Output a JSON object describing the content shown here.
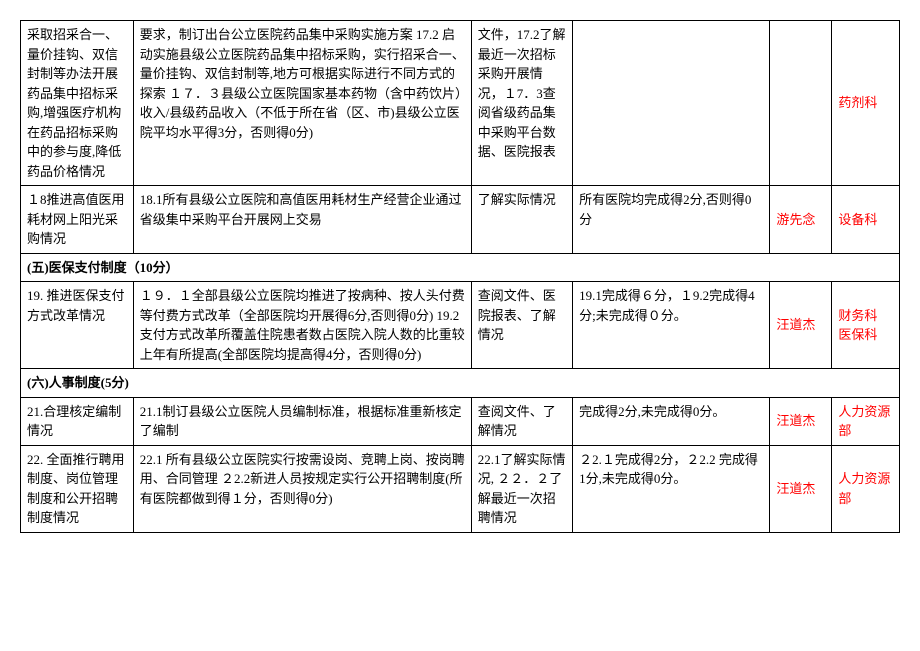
{
  "rows": {
    "r1": {
      "c1": "采取招采合一、量价挂钩、双信封制等办法开展药品集中招标采购,增强医疗机构在药品招标采购中的参与度,降低药品价格情况",
      "c2": "要求，制订出台公立医院药品集中采购实施方案 17.2 启动实施县级公立医院药品集中招标采购，实行招采合一、量价挂钩、双信封制等,地方可根据实际进行不同方式的探索\n１７．３县级公立医院国家基本药物（含中药饮片）收入/县级药品收入（不低于所在省（区、市)县级公立医院平均水平得3分，否则得0分)",
      "c3": "文件，17.2了解最近一次招标采购开展情况，１7．3查阅省级药品集中采购平台数据、医院报表",
      "c6": "药剂科"
    },
    "r2": {
      "c1": "１8推进高值医用耗材网上阳光采购情况",
      "c2": "18.1所有县级公立医院和高值医用耗材生产经营企业通过省级集中采购平台开展网上交易",
      "c3": "了解实际情况",
      "c4": "所有医院均完成得2分,否则得0分",
      "c5": "游先念",
      "c6": "设备科"
    },
    "s5": "(五)医保支付制度（10分）",
    "r3": {
      "c1": "19.\n推进医保支付方式改革情况",
      "c2": "１９．１全部县级公立医院均推进了按病种、按人头付费等付费方式改革（全部医院均开展得6分,否则得0分) 19.2支付方式改革所覆盖住院患者数占医院入院人数的比重较上年有所提高(全部医院均提高得4分，否则得0分)",
      "c3": "查阅文件、医院报表、了解情况",
      "c4": "19.1完成得６分，１9.2完成得4分;未完成得０分。",
      "c5": "汪道杰",
      "c6": "财务科\n医保科"
    },
    "s6": "(六)人事制度(5分)",
    "r4": {
      "c1": "21.合理核定编制情况",
      "c2": "21.1制订县级公立医院人员编制标准，根据标准重新核定了编制",
      "c3": "查阅文件、了解情况",
      "c4": "完成得2分,未完成得0分。",
      "c5": "汪道杰",
      "c6": "人力资源部"
    },
    "r5": {
      "c1": "22.\n全面推行聘用制度、岗位管理制度和公开招聘制度情况",
      "c2": "22.1\n所有县级公立医院实行按需设岗、竞聘上岗、按岗聘用、合同管理\n２2.2新进人员按规定实行公开招聘制度(所有医院都做到得１分，否则得0分)",
      "c3": "22.1了解实际情况,\n２２．２了解最近一次招聘情况",
      "c4": "２2.１完成得2分，２2.2 完成得1分,未完成得0分。",
      "c5": "汪道杰",
      "c6": "人力资源部"
    }
  }
}
